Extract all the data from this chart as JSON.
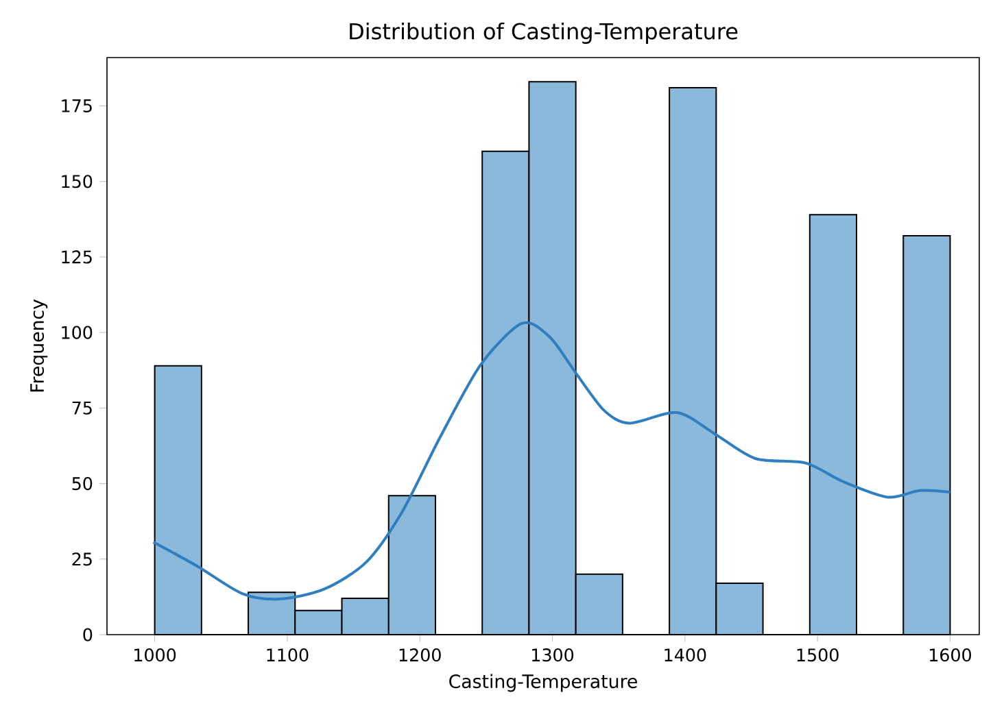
{
  "chart_data": {
    "type": "histogram",
    "title": "Distribution of Casting-Temperature",
    "xlabel": "Casting-Temperature",
    "ylabel": "Frequency",
    "series": [
      {
        "color": "#8ab9dc",
        "bins": [
          1000,
          1035.29,
          1070.59,
          1105.88,
          1141.18,
          1176.47,
          1211.76,
          1247.06,
          1282.35,
          1317.65,
          1352.94,
          1388.24,
          1423.53,
          1458.82,
          1494.12,
          1529.41,
          1564.71,
          1600
        ],
        "values": [
          89,
          0,
          14,
          8,
          12,
          46,
          0,
          160,
          183,
          20,
          0,
          181,
          17,
          0,
          139,
          0,
          132
        ]
      },
      {
        "type": "line",
        "color": "#2f7ec0",
        "x": [
          999,
          1032,
          1066,
          1094,
          1128,
          1160,
          1187,
          1215,
          1246,
          1277,
          1298,
          1318,
          1339,
          1358,
          1394,
          1422,
          1453,
          1491,
          1519,
          1553,
          1577,
          1600
        ],
        "values": [
          30.6,
          22.7,
          13.6,
          11.8,
          15.1,
          24.2,
          40.9,
          65.1,
          89.4,
          103,
          98.5,
          86.4,
          74.2,
          70,
          73.5,
          66.6,
          58.3,
          56.8,
          50.7,
          45.5,
          47.7,
          47.2
        ]
      }
    ],
    "xlim": [
      964,
      1622
    ],
    "ylim": [
      0,
      191
    ],
    "xticks": [
      1000,
      1100,
      1200,
      1300,
      1400,
      1500,
      1600
    ],
    "yticks": [
      0,
      25,
      50,
      75,
      100,
      125,
      150,
      175
    ]
  }
}
